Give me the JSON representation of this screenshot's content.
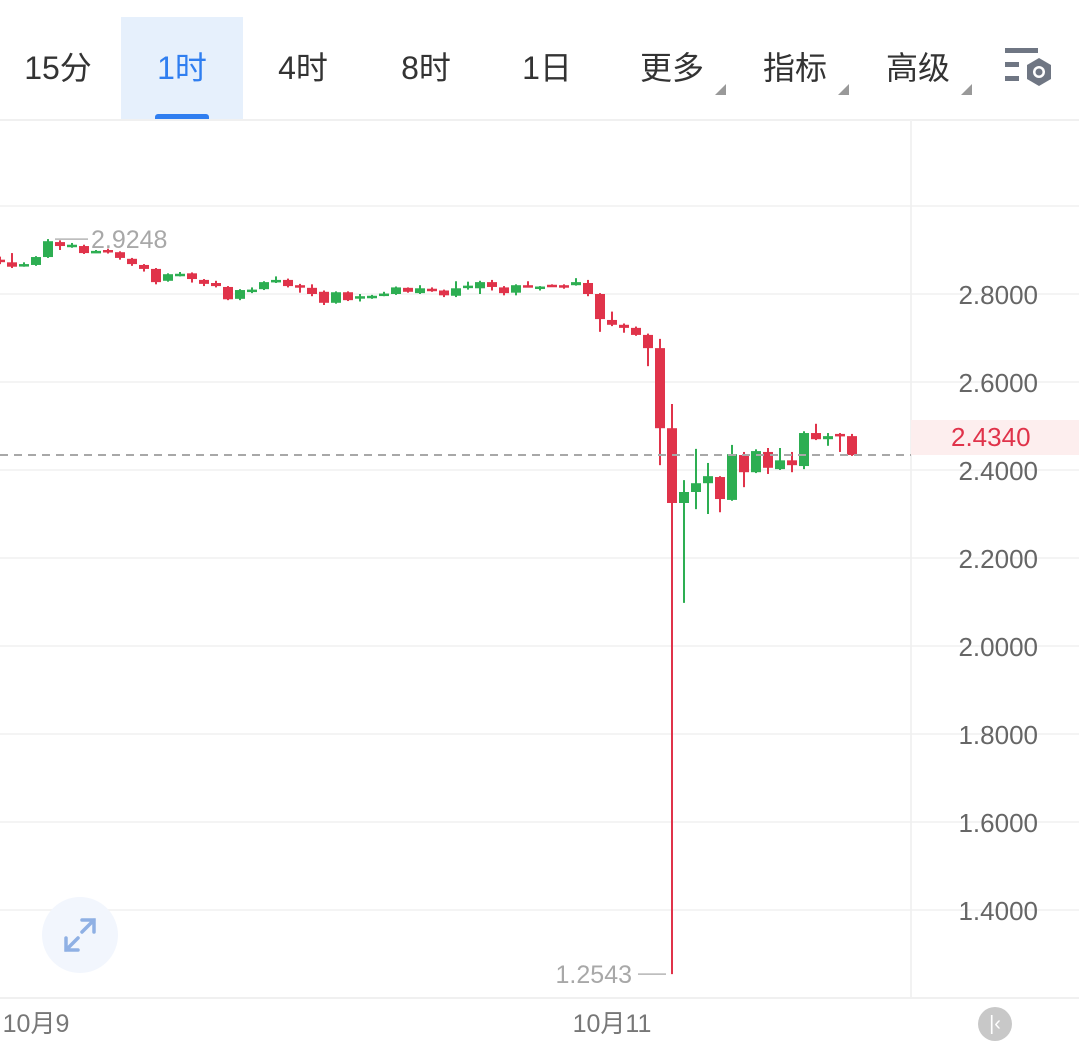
{
  "toolbar": {
    "tabs": [
      {
        "label": "15分",
        "active": false
      },
      {
        "label": "1时",
        "active": true
      },
      {
        "label": "4时",
        "active": false
      },
      {
        "label": "8时",
        "active": false
      },
      {
        "label": "1日",
        "active": false
      }
    ],
    "dropdowns": [
      {
        "label": "更多"
      },
      {
        "label": "指标"
      },
      {
        "label": "高级"
      }
    ],
    "settings_icon": "chart-settings-icon"
  },
  "colors": {
    "up": "#2dae52",
    "down": "#e0334a",
    "accent": "#2f7ef0",
    "grid": "#f0f0f0"
  },
  "chart_data": {
    "type": "candlestick",
    "ylim": [
      1.2,
      3.05
    ],
    "y_ticks": [
      "2.8000",
      "2.6000",
      "2.4000",
      "2.2000",
      "2.0000",
      "1.8000",
      "1.6000",
      "1.4000"
    ],
    "y_tick_values": [
      2.8,
      2.6,
      2.4,
      2.2,
      2.0,
      1.8,
      1.6,
      1.4
    ],
    "x_ticks": [
      {
        "label": "10月9",
        "index": 3
      },
      {
        "label": "10月11",
        "index": 51
      }
    ],
    "grid": true,
    "current_price": {
      "value": 2.434,
      "label": "2.4340"
    },
    "max_marker": {
      "value": 2.9248,
      "label": "2.9248",
      "index": 4
    },
    "min_marker": {
      "value": 1.2543,
      "label": "1.2543",
      "index": 56
    },
    "candles": [
      [
        2.878,
        2.885,
        2.868,
        2.874
      ],
      [
        2.872,
        2.893,
        2.859,
        2.862
      ],
      [
        2.866,
        2.872,
        2.862,
        2.868
      ],
      [
        2.866,
        2.886,
        2.864,
        2.884
      ],
      [
        2.884,
        2.9248,
        2.882,
        2.92
      ],
      [
        2.918,
        2.922,
        2.9,
        2.909
      ],
      [
        2.91,
        2.916,
        2.905,
        2.912
      ],
      [
        2.909,
        2.912,
        2.891,
        2.893
      ],
      [
        2.895,
        2.9,
        2.893,
        2.898
      ],
      [
        2.9,
        2.903,
        2.892,
        2.896
      ],
      [
        2.895,
        2.897,
        2.878,
        2.882
      ],
      [
        2.88,
        2.882,
        2.864,
        2.868
      ],
      [
        2.866,
        2.868,
        2.851,
        2.857
      ],
      [
        2.857,
        2.859,
        2.822,
        2.827
      ],
      [
        2.83,
        2.847,
        2.828,
        2.845
      ],
      [
        2.843,
        2.85,
        2.84,
        2.846
      ],
      [
        2.847,
        2.849,
        2.826,
        2.834
      ],
      [
        2.832,
        2.834,
        2.818,
        2.823
      ],
      [
        2.825,
        2.83,
        2.815,
        2.818
      ],
      [
        2.816,
        2.818,
        2.786,
        2.788
      ],
      [
        2.789,
        2.811,
        2.786,
        2.809
      ],
      [
        2.807,
        2.815,
        2.802,
        2.81
      ],
      [
        2.811,
        2.829,
        2.809,
        2.827
      ],
      [
        2.829,
        2.84,
        2.825,
        2.832
      ],
      [
        2.832,
        2.835,
        2.815,
        2.818
      ],
      [
        2.82,
        2.823,
        2.803,
        2.817
      ],
      [
        2.814,
        2.822,
        2.795,
        2.8
      ],
      [
        2.805,
        2.808,
        2.775,
        2.78
      ],
      [
        2.78,
        2.806,
        2.778,
        2.804
      ],
      [
        2.804,
        2.806,
        2.784,
        2.786
      ],
      [
        2.792,
        2.8,
        2.783,
        2.795
      ],
      [
        2.792,
        2.798,
        2.789,
        2.796
      ],
      [
        2.798,
        2.805,
        2.795,
        2.801
      ],
      [
        2.8,
        2.817,
        2.798,
        2.815
      ],
      [
        2.814,
        2.815,
        2.803,
        2.805
      ],
      [
        2.802,
        2.82,
        2.8,
        2.813
      ],
      [
        2.812,
        2.815,
        2.805,
        2.809
      ],
      [
        2.808,
        2.81,
        2.793,
        2.797
      ],
      [
        2.796,
        2.829,
        2.793,
        2.813
      ],
      [
        2.816,
        2.828,
        2.81,
        2.819
      ],
      [
        2.813,
        2.83,
        2.8,
        2.827
      ],
      [
        2.827,
        2.832,
        2.808,
        2.816
      ],
      [
        2.815,
        2.818,
        2.797,
        2.802
      ],
      [
        2.803,
        2.822,
        2.797,
        2.82
      ],
      [
        2.82,
        2.829,
        2.815,
        2.816
      ],
      [
        2.815,
        2.818,
        2.808,
        2.817
      ],
      [
        2.821,
        2.822,
        2.818,
        2.819
      ],
      [
        2.82,
        2.822,
        2.812,
        2.818
      ],
      [
        2.82,
        2.836,
        2.819,
        2.827
      ],
      [
        2.825,
        2.832,
        2.795,
        2.8
      ],
      [
        2.8,
        2.802,
        2.714,
        2.743
      ],
      [
        2.741,
        2.76,
        2.727,
        2.73
      ],
      [
        2.73,
        2.733,
        2.712,
        2.723
      ],
      [
        2.723,
        2.726,
        2.705,
        2.707
      ],
      [
        2.707,
        2.71,
        2.636,
        2.677
      ],
      [
        2.677,
        2.698,
        2.411,
        2.495
      ],
      [
        2.495,
        2.55,
        1.2543,
        2.325
      ],
      [
        2.325,
        2.377,
        2.098,
        2.35
      ],
      [
        2.35,
        2.448,
        2.311,
        2.37
      ],
      [
        2.37,
        2.416,
        2.3,
        2.386
      ],
      [
        2.384,
        2.386,
        2.304,
        2.334
      ],
      [
        2.332,
        2.457,
        2.33,
        2.436
      ],
      [
        2.434,
        2.441,
        2.361,
        2.395
      ],
      [
        2.395,
        2.447,
        2.393,
        2.443
      ],
      [
        2.441,
        2.45,
        2.391,
        2.405
      ],
      [
        2.402,
        2.45,
        2.4,
        2.422
      ],
      [
        2.422,
        2.441,
        2.395,
        2.411
      ],
      [
        2.409,
        2.488,
        2.402,
        2.484
      ],
      [
        2.484,
        2.505,
        2.468,
        2.47
      ],
      [
        2.47,
        2.484,
        2.455,
        2.477
      ],
      [
        2.482,
        2.484,
        2.441,
        2.477
      ],
      [
        2.477,
        2.482,
        2.432,
        2.434
      ]
    ]
  }
}
